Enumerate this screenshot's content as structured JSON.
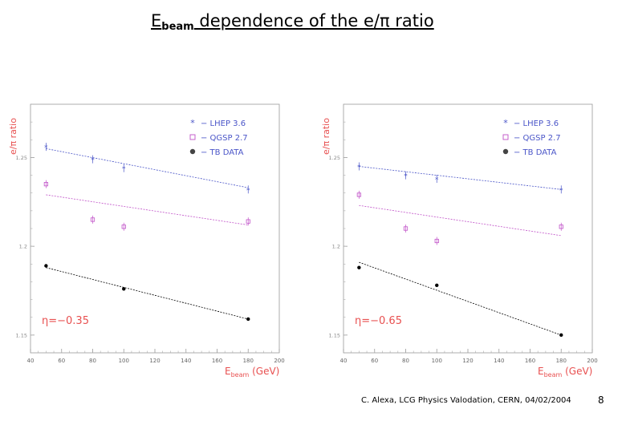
{
  "title": {
    "prefix": "E",
    "sub": "beam",
    "rest": " dependence of the e/π ratio"
  },
  "footer": "C. Alexa, LCG Physics Valodation, CERN, 04/02/2004",
  "page_number": "8",
  "colors": {
    "lhep": "#4a55c8",
    "qgsp": "#c050c8",
    "data": "#000000",
    "eta": "#e85050",
    "xlabel": "#e85050",
    "ylabel": "#e85050",
    "legend": "#4a55c8"
  },
  "chart_data": [
    {
      "type": "scatter",
      "eta_label": "η=−0.35",
      "xlabel_main": "E",
      "xlabel_sub": "beam",
      "xlabel_unit": "(GeV)",
      "ylabel": "e/π ratio",
      "xlim": [
        40,
        200
      ],
      "ylim": [
        1.14,
        1.28
      ],
      "xticks": [
        40,
        60,
        80,
        100,
        120,
        140,
        160,
        180,
        200
      ],
      "yticks": [
        {
          "v": 1.25,
          "label": "1.25"
        },
        {
          "v": 1.2,
          "label": "1.2"
        },
        {
          "v": 1.15,
          "label": "1.15"
        }
      ],
      "legend": [
        {
          "symbol": "*",
          "label": "LHEP 3.6",
          "series": "lhep"
        },
        {
          "symbol": "□",
          "label": "QGSP 2.7",
          "series": "qgsp"
        },
        {
          "symbol": "●",
          "label": "TB DATA",
          "series": "data"
        }
      ],
      "series": [
        {
          "name": "LHEP 3.6",
          "key": "lhep",
          "marker": "star",
          "x": [
            50,
            80,
            100,
            180
          ],
          "y": [
            1.256,
            1.249,
            1.244,
            1.232
          ],
          "fit": [
            1.255,
            1.233
          ]
        },
        {
          "name": "QGSP 2.7",
          "key": "qgsp",
          "marker": "square",
          "x": [
            50,
            80,
            100,
            180
          ],
          "y": [
            1.235,
            1.215,
            1.211,
            1.214
          ],
          "fit": [
            1.229,
            1.212
          ]
        },
        {
          "name": "TB DATA",
          "key": "data",
          "marker": "dot",
          "x": [
            50,
            100,
            180
          ],
          "y": [
            1.189,
            1.176,
            1.159
          ],
          "fit": [
            1.188,
            1.159
          ]
        }
      ]
    },
    {
      "type": "scatter",
      "eta_label": "η=−0.65",
      "xlabel_main": "E",
      "xlabel_sub": "beam",
      "xlabel_unit": "(GeV)",
      "ylabel": "e/π ratio",
      "xlim": [
        40,
        200
      ],
      "ylim": [
        1.14,
        1.28
      ],
      "xticks": [
        40,
        60,
        80,
        100,
        120,
        140,
        160,
        180,
        200
      ],
      "yticks": [
        {
          "v": 1.25,
          "label": "1.25"
        },
        {
          "v": 1.2,
          "label": "1.2"
        },
        {
          "v": 1.15,
          "label": "1.15"
        }
      ],
      "legend": [
        {
          "symbol": "*",
          "label": "LHEP 3.6",
          "series": "lhep"
        },
        {
          "symbol": "□",
          "label": "QGSP 2.7",
          "series": "qgsp"
        },
        {
          "symbol": "●",
          "label": "TB DATA",
          "series": "data"
        }
      ],
      "series": [
        {
          "name": "LHEP 3.6",
          "key": "lhep",
          "marker": "star",
          "x": [
            50,
            80,
            100,
            180
          ],
          "y": [
            1.245,
            1.24,
            1.238,
            1.232
          ],
          "fit": [
            1.245,
            1.232
          ]
        },
        {
          "name": "QGSP 2.7",
          "key": "qgsp",
          "marker": "square",
          "x": [
            50,
            80,
            100,
            180
          ],
          "y": [
            1.229,
            1.21,
            1.203,
            1.211
          ],
          "fit": [
            1.223,
            1.206
          ]
        },
        {
          "name": "TB DATA",
          "key": "data",
          "marker": "dot",
          "x": [
            50,
            100,
            180
          ],
          "y": [
            1.188,
            1.178,
            1.15
          ],
          "fit": [
            1.191,
            1.15
          ]
        }
      ]
    }
  ]
}
